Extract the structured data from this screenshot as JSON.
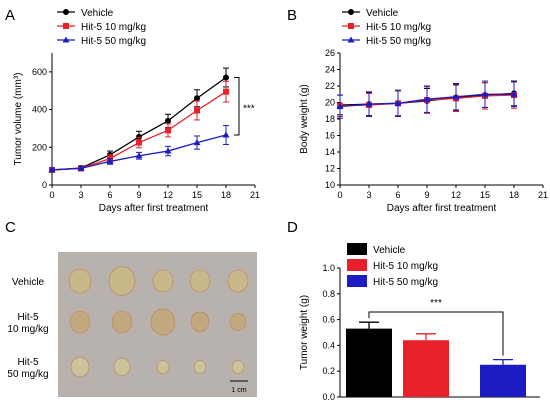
{
  "panel_labels": [
    "A",
    "B",
    "C",
    "D"
  ],
  "colors": {
    "vehicle": "#000000",
    "hit5_10": "#e8202a",
    "hit5_50": "#1c1cc4",
    "photo_bg": "#b7b2ad",
    "tumor_fill": "#cfc08d"
  },
  "chart_data": [
    {
      "panel": "A",
      "type": "line",
      "xlabel": "Days after first treatment",
      "ylabel": "Tumor volume (mm³)",
      "xlim": [
        0,
        21
      ],
      "ylim": [
        0,
        700
      ],
      "xticks": [
        "0",
        "3",
        "6",
        "9",
        "12",
        "15",
        "18",
        "21"
      ],
      "yticks": [
        "0",
        "200",
        "400",
        "600"
      ],
      "x": [
        0,
        3,
        6,
        9,
        12,
        15,
        18
      ],
      "legend_position": "top-left",
      "significance": "***",
      "series": [
        {
          "name": "Vehicle",
          "marker": "circle",
          "values": [
            80,
            90,
            160,
            255,
            340,
            460,
            570
          ],
          "errors": [
            10,
            12,
            20,
            30,
            35,
            45,
            50
          ]
        },
        {
          "name": "Hit-5 10 mg/kg",
          "marker": "square",
          "values": [
            80,
            88,
            140,
            225,
            290,
            395,
            495
          ],
          "errors": [
            10,
            12,
            20,
            28,
            35,
            50,
            55
          ]
        },
        {
          "name": "Hit-5 50 mg/kg",
          "marker": "triangle",
          "values": [
            80,
            88,
            125,
            155,
            180,
            225,
            265
          ],
          "errors": [
            10,
            10,
            15,
            18,
            25,
            35,
            50
          ]
        }
      ]
    },
    {
      "panel": "B",
      "type": "line",
      "xlabel": "Days after first treatment",
      "ylabel": "Body weight (g)",
      "xlim": [
        0,
        21
      ],
      "ylim": [
        10,
        26
      ],
      "xticks": [
        "0",
        "3",
        "6",
        "9",
        "12",
        "15",
        "18",
        "21"
      ],
      "yticks": [
        "10",
        "12",
        "14",
        "16",
        "18",
        "20",
        "22",
        "24",
        "26"
      ],
      "x": [
        0,
        3,
        6,
        9,
        12,
        15,
        18
      ],
      "legend_position": "top-left",
      "series": [
        {
          "name": "Vehicle",
          "marker": "circle",
          "values": [
            19.7,
            19.8,
            19.9,
            20.2,
            20.6,
            20.9,
            21.1
          ],
          "errors": [
            1.2,
            1.4,
            1.5,
            1.5,
            1.6,
            1.5,
            1.5
          ]
        },
        {
          "name": "Hit-5 10 mg/kg",
          "marker": "square",
          "values": [
            19.6,
            19.7,
            19.9,
            20.3,
            20.5,
            20.8,
            20.9
          ],
          "errors": [
            1.3,
            1.4,
            1.5,
            1.6,
            1.6,
            1.6,
            1.6
          ]
        },
        {
          "name": "Hit-5 50 mg/kg",
          "marker": "triangle",
          "values": [
            19.5,
            19.8,
            19.9,
            20.4,
            20.7,
            21.0,
            21.0
          ],
          "errors": [
            1.4,
            1.5,
            1.6,
            1.6,
            1.6,
            1.6,
            1.5
          ]
        }
      ]
    },
    {
      "panel": "D",
      "type": "bar",
      "ylabel": "Tumor weight (g)",
      "ylim": [
        0,
        1.0
      ],
      "yticks": [
        "0.0",
        "0.2",
        "0.4",
        "0.6",
        "0.8",
        "1.0"
      ],
      "categories": [
        "Vehicle",
        "Hit-5 10 mg/kg",
        "Hit-5 50 mg/kg"
      ],
      "values": [
        0.53,
        0.44,
        0.25
      ],
      "errors": [
        0.05,
        0.05,
        0.04
      ],
      "legend_position": "top-left",
      "significance": "***"
    }
  ],
  "photo": {
    "row_labels": [
      [
        "Vehicle"
      ],
      [
        "Hit-5",
        "10 mg/kg"
      ],
      [
        "Hit-5",
        "50 mg/kg"
      ]
    ],
    "scale_bar_label": "1 cm"
  }
}
